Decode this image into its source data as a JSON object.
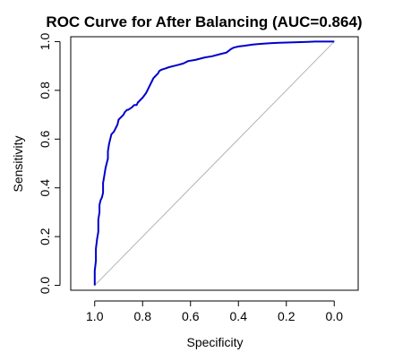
{
  "chart_data": {
    "type": "line",
    "title": "ROC Curve for After Balancing (AUC=0.864)",
    "xlabel": "Specificity",
    "ylabel": "Sensitivity",
    "x_reversed": true,
    "xlim": [
      1.1,
      -0.1
    ],
    "ylim": [
      -0.02,
      1.02
    ],
    "x_ticks": [
      1.0,
      0.8,
      0.6,
      0.4,
      0.2,
      0.0
    ],
    "x_tick_labels": [
      "1.0",
      "0.8",
      "0.6",
      "0.4",
      "0.2",
      "0.0"
    ],
    "y_ticks": [
      0.0,
      0.2,
      0.4,
      0.6,
      0.8,
      1.0
    ],
    "y_tick_labels": [
      "0.0",
      "0.2",
      "0.4",
      "0.6",
      "0.8",
      "1.0"
    ],
    "grid": false,
    "legend": "none",
    "reference_line": {
      "x": [
        1.0,
        0.0
      ],
      "y": [
        0.0,
        1.0
      ],
      "color": "#b3b3b3"
    },
    "series": [
      {
        "color": "#0000cc",
        "x": [
          1.0,
          1.0,
          0.995,
          0.995,
          0.99,
          0.985,
          0.985,
          0.98,
          0.98,
          0.975,
          0.97,
          0.965,
          0.965,
          0.96,
          0.955,
          0.95,
          0.945,
          0.945,
          0.94,
          0.935,
          0.93,
          0.92,
          0.915,
          0.905,
          0.9,
          0.89,
          0.88,
          0.875,
          0.865,
          0.86,
          0.845,
          0.835,
          0.825,
          0.82,
          0.8,
          0.785,
          0.78,
          0.77,
          0.76,
          0.755,
          0.745,
          0.735,
          0.73,
          0.72,
          0.705,
          0.69,
          0.67,
          0.65,
          0.63,
          0.61,
          0.58,
          0.56,
          0.54,
          0.51,
          0.49,
          0.47,
          0.45,
          0.43,
          0.42,
          0.4,
          0.38,
          0.36,
          0.34,
          0.32,
          0.29,
          0.26,
          0.23,
          0.2,
          0.17,
          0.14,
          0.11,
          0.08,
          0.05,
          0.02,
          0.0
        ],
        "y": [
          0.0,
          0.06,
          0.1,
          0.15,
          0.19,
          0.22,
          0.27,
          0.3,
          0.33,
          0.35,
          0.36,
          0.38,
          0.42,
          0.45,
          0.48,
          0.5,
          0.52,
          0.55,
          0.58,
          0.6,
          0.62,
          0.63,
          0.64,
          0.66,
          0.68,
          0.69,
          0.7,
          0.71,
          0.72,
          0.72,
          0.73,
          0.74,
          0.74,
          0.75,
          0.77,
          0.79,
          0.8,
          0.82,
          0.84,
          0.85,
          0.86,
          0.87,
          0.88,
          0.885,
          0.89,
          0.895,
          0.9,
          0.905,
          0.91,
          0.92,
          0.925,
          0.93,
          0.935,
          0.94,
          0.945,
          0.95,
          0.955,
          0.97,
          0.975,
          0.98,
          0.982,
          0.985,
          0.988,
          0.99,
          0.992,
          0.994,
          0.995,
          0.996,
          0.997,
          0.998,
          0.999,
          1.0,
          1.0,
          1.0,
          1.0
        ]
      }
    ]
  }
}
